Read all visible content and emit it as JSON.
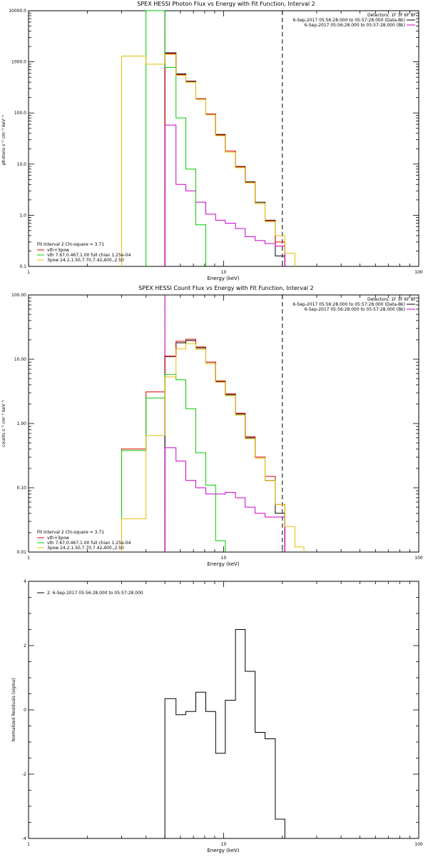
{
  "panels": [
    {
      "id": "photon",
      "title": "SPEX HESSI Photon Flux vs Energy with Fit Function, Interval 2",
      "xlabel": "Energy (keV)",
      "ylabel": "photons s⁻¹ cm⁻² keV⁻¹",
      "detectors": "Detectors: 1F 3F 6F 8F",
      "legend_top": [
        {
          "text": "6-Sep-2017 05:56:28.000 to 05:57:28.000 (Data-Bk)",
          "color": "#000000"
        },
        {
          "text": "6-Sep-2017 05:56:28.000 to 05:57:28.000 (Bk)",
          "color": "#cc00cc"
        }
      ],
      "legend_bottom": [
        {
          "text": "Fit Interval 2   Chi-square = 3.71",
          "color": null
        },
        {
          "text": "vth+3pow",
          "color": "#dd0000"
        },
        {
          "text": "vth 7.67,0.467,1.00  full chian 1.25e-04",
          "color": "#00cc00"
        },
        {
          "text": "3pow 24.2,1.50,7.70,7.42,400.,2.50",
          "color": "#e0c000"
        }
      ]
    },
    {
      "id": "count",
      "title": "SPEX HESSI Count Flux vs Energy with Fit Function, Interval 2",
      "xlabel": "Energy (keV)",
      "ylabel": "counts s⁻¹ cm⁻² keV⁻¹",
      "detectors": "Detectors: 1F 3F 6F 8F",
      "legend_top": [
        {
          "text": "6-Sep-2017 05:56:28.000 to 05:57:28.000 (Data-Bk)",
          "color": "#000000"
        },
        {
          "text": "6-Sep-2017 05:56:28.000 to 05:57:28.000 (Bk)",
          "color": "#cc00cc"
        }
      ],
      "legend_bottom": [
        {
          "text": "Fit Interval 2   Chi-square = 3.71",
          "color": null
        },
        {
          "text": "vth+3pow",
          "color": "#dd0000"
        },
        {
          "text": "vth 7.67,0.467,1.00  full chian 1.25e-04",
          "color": "#00cc00"
        },
        {
          "text": "3pow 24.2,1.50,7.70,7.42,400.,2.50",
          "color": "#e0c000"
        }
      ]
    },
    {
      "id": "residuals",
      "title": "",
      "xlabel": "Energy (keV)",
      "ylabel": "Normalized Residuals (sigma)",
      "legend_top_left": "2.  6-Sep-2017 05:56:28.000 to 05:57:28.000"
    }
  ],
  "chart_data": [
    {
      "type": "line",
      "panel": "photon",
      "title": "SPEX HESSI Photon Flux vs Energy with Fit Function, Interval 2",
      "xlabel": "Energy (keV)",
      "ylabel": "photons s⁻¹ cm⁻² keV⁻¹",
      "xscale": "log",
      "yscale": "log",
      "xlim": [
        1,
        100
      ],
      "ylim": [
        0.1,
        10000
      ],
      "xticks": [
        {
          "v": 1,
          "label": "1"
        },
        {
          "v": 10,
          "label": "10"
        },
        {
          "v": 100,
          "label": "100"
        }
      ],
      "yticks": [
        {
          "v": 0.1,
          "label": "0.1"
        },
        {
          "v": 1,
          "label": "1.0"
        },
        {
          "v": 10,
          "label": "10.0"
        },
        {
          "v": 100,
          "label": "100.0"
        },
        {
          "v": 1000,
          "label": "1000.0"
        },
        {
          "v": 10000,
          "label": "10000.0"
        }
      ],
      "vlines": [
        {
          "x": 5,
          "style": "dotted",
          "color": "#000000"
        },
        {
          "x": 5,
          "style": "solid",
          "color": "#cc00cc"
        },
        {
          "x": 20,
          "style": "dashed",
          "color": "#000000"
        }
      ],
      "bin_edges": [
        3,
        4,
        5,
        5.7,
        6.4,
        7.2,
        8.1,
        9.1,
        10.2,
        11.5,
        12.9,
        14.5,
        16.3,
        18.4,
        20.6,
        23.2
      ],
      "series": [
        {
          "color": "#000000",
          "values": [
            null,
            null,
            1500,
            580,
            420,
            190,
            95,
            38,
            18,
            9,
            4.5,
            1.8,
            0.8,
            0.16,
            null
          ]
        },
        {
          "color": "#dd0000",
          "values": [
            null,
            null,
            1450,
            560,
            410,
            190,
            95,
            37,
            18,
            8.8,
            4.4,
            1.7,
            0.78,
            0.3,
            null
          ]
        },
        {
          "color": "#cc00cc",
          "values": [
            null,
            null,
            58,
            4,
            3,
            1.8,
            1.05,
            0.8,
            0.7,
            0.55,
            0.38,
            0.32,
            0.28,
            0.25,
            null
          ]
        },
        {
          "color": "#00cc00",
          "values": [
            null,
            10000,
            780,
            80,
            8,
            0.65,
            null,
            null,
            null,
            null,
            null,
            null,
            null,
            null,
            null
          ]
        },
        {
          "color": "#e0c000",
          "values": [
            1300,
            900,
            1400,
            540,
            400,
            185,
            92,
            36,
            17,
            8.5,
            4.3,
            1.7,
            0.75,
            0.4,
            0.18
          ]
        }
      ]
    },
    {
      "type": "line",
      "panel": "count",
      "title": "SPEX HESSI Count Flux vs Energy with Fit Function, Interval 2",
      "xlabel": "Energy (keV)",
      "ylabel": "counts s⁻¹ cm⁻² keV⁻¹",
      "xscale": "log",
      "yscale": "log",
      "xlim": [
        1,
        100
      ],
      "ylim": [
        0.01,
        100
      ],
      "xticks": [
        {
          "v": 1,
          "label": "1"
        },
        {
          "v": 10,
          "label": "10"
        },
        {
          "v": 100,
          "label": "100"
        }
      ],
      "yticks": [
        {
          "v": 0.01,
          "label": "0.01"
        },
        {
          "v": 0.1,
          "label": "0.10"
        },
        {
          "v": 1,
          "label": "1.00"
        },
        {
          "v": 10,
          "label": "10.00"
        },
        {
          "v": 100,
          "label": "100.00"
        }
      ],
      "vlines": [
        {
          "x": 5,
          "style": "dotted",
          "color": "#000000"
        },
        {
          "x": 5,
          "style": "solid",
          "color": "#cc00cc"
        },
        {
          "x": 20,
          "style": "dashed",
          "color": "#000000"
        }
      ],
      "bin_edges": [
        3,
        4,
        5,
        5.7,
        6.4,
        7.2,
        8.1,
        9.1,
        10.2,
        11.5,
        12.9,
        14.5,
        16.3,
        18.4,
        20.6,
        23.2,
        25.8
      ],
      "series": [
        {
          "color": "#000000",
          "values": [
            null,
            null,
            11,
            18,
            19.5,
            15,
            9,
            4.5,
            2.8,
            1.4,
            0.6,
            0.3,
            0.13,
            0.04,
            null,
            null
          ]
        },
        {
          "color": "#dd0000",
          "values": [
            0.4,
            3.1,
            11.2,
            19,
            20.5,
            15.5,
            9,
            4.6,
            2.9,
            1.45,
            0.62,
            0.3,
            0.15,
            0.055,
            null,
            null
          ]
        },
        {
          "color": "#cc00cc",
          "values": [
            null,
            null,
            0.42,
            0.26,
            0.13,
            0.1,
            0.08,
            0.08,
            0.085,
            0.07,
            0.05,
            0.04,
            0.035,
            0.035,
            null,
            null
          ]
        },
        {
          "color": "#00cc00",
          "values": [
            0.38,
            2.5,
            5.8,
            4.8,
            1.7,
            0.35,
            0.11,
            0.015,
            null,
            null,
            null,
            null,
            null,
            null,
            null,
            null
          ]
        },
        {
          "color": "#e0c000",
          "values": [
            0.033,
            0.65,
            5.3,
            14.5,
            17.5,
            14.2,
            8.5,
            4.4,
            2.7,
            1.35,
            0.58,
            0.29,
            0.13,
            0.055,
            0.025,
            0.012
          ]
        }
      ]
    },
    {
      "type": "line",
      "panel": "residuals",
      "title": "",
      "xlabel": "Energy (keV)",
      "ylabel": "Normalized Residuals (sigma)",
      "xscale": "log",
      "yscale": "linear",
      "xlim": [
        1,
        100
      ],
      "ylim": [
        -4,
        4
      ],
      "xticks": [
        {
          "v": 1,
          "label": "1"
        },
        {
          "v": 10,
          "label": "10"
        },
        {
          "v": 100,
          "label": "100"
        }
      ],
      "yticks": [
        {
          "v": -4,
          "label": "-4"
        },
        {
          "v": -2,
          "label": "-2"
        },
        {
          "v": 0,
          "label": "0"
        },
        {
          "v": 2,
          "label": "2"
        },
        {
          "v": 4,
          "label": "4"
        }
      ],
      "bin_edges": [
        5,
        5.7,
        6.4,
        7.2,
        8.1,
        9.1,
        10.2,
        11.5,
        12.9,
        14.5,
        16.3,
        18.4,
        20.6
      ],
      "series": [
        {
          "color": "#000000",
          "values": [
            0.35,
            -0.15,
            -0.05,
            0.55,
            -0.05,
            -1.35,
            0.3,
            2.5,
            1.2,
            -0.7,
            -0.9,
            -3.4
          ]
        }
      ]
    }
  ]
}
